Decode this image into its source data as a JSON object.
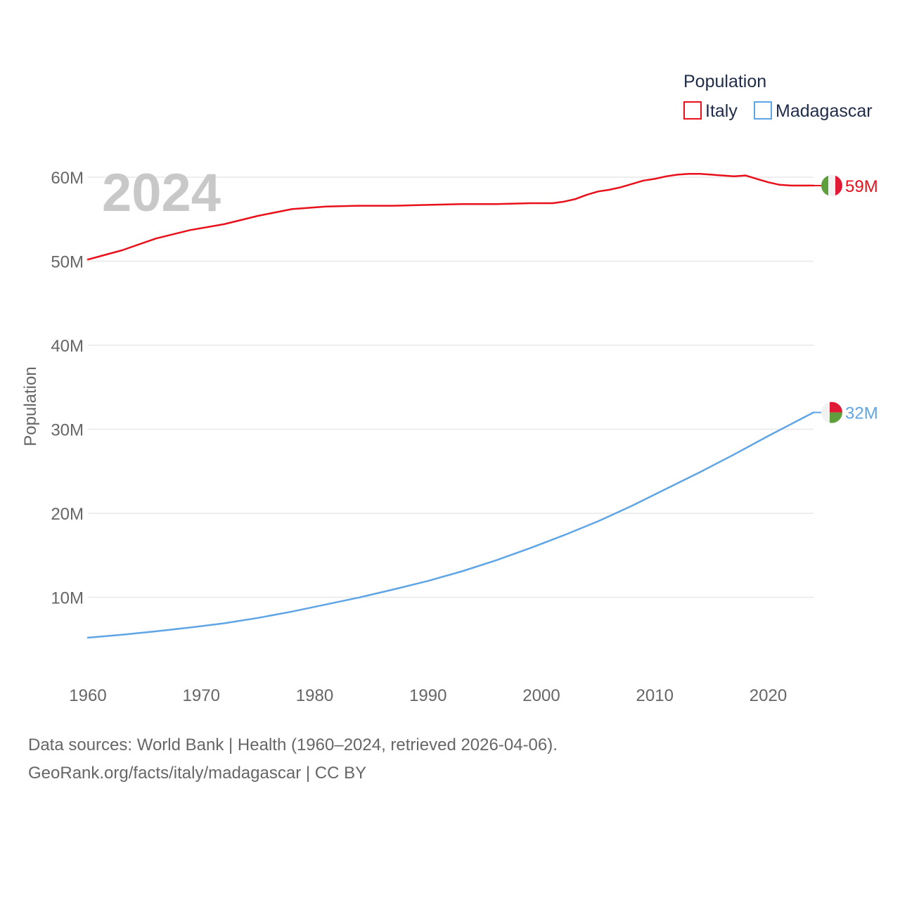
{
  "chart_data": {
    "type": "line",
    "title": "",
    "year_label": "2024",
    "xlabel": "",
    "ylabel": "Population",
    "xlim": [
      1960,
      2024
    ],
    "ylim": [
      0,
      65000000
    ],
    "x_ticks": [
      1960,
      1970,
      1980,
      1990,
      2000,
      2010,
      2020
    ],
    "y_ticks": [
      {
        "value": 10000000,
        "label": "10M"
      },
      {
        "value": 20000000,
        "label": "20M"
      },
      {
        "value": 30000000,
        "label": "30M"
      },
      {
        "value": 40000000,
        "label": "40M"
      },
      {
        "value": 50000000,
        "label": "50M"
      },
      {
        "value": 60000000,
        "label": "60M"
      }
    ],
    "legend": {
      "title": "Population",
      "placement": "top-right"
    },
    "series": [
      {
        "name": "Italy",
        "color": "#e8101a",
        "end_label": "59M",
        "flag_colors": [
          "#5f9e3d",
          "#f2f2f2",
          "#e01a36"
        ],
        "points": [
          [
            1960,
            50200000
          ],
          [
            1963,
            51300000
          ],
          [
            1966,
            52700000
          ],
          [
            1969,
            53700000
          ],
          [
            1972,
            54400000
          ],
          [
            1975,
            55400000
          ],
          [
            1978,
            56200000
          ],
          [
            1981,
            56500000
          ],
          [
            1984,
            56600000
          ],
          [
            1987,
            56600000
          ],
          [
            1990,
            56700000
          ],
          [
            1993,
            56800000
          ],
          [
            1996,
            56800000
          ],
          [
            1999,
            56900000
          ],
          [
            2001,
            56900000
          ],
          [
            2002,
            57100000
          ],
          [
            2003,
            57400000
          ],
          [
            2004,
            57900000
          ],
          [
            2005,
            58300000
          ],
          [
            2006,
            58500000
          ],
          [
            2007,
            58800000
          ],
          [
            2008,
            59200000
          ],
          [
            2009,
            59600000
          ],
          [
            2010,
            59800000
          ],
          [
            2011,
            60100000
          ],
          [
            2012,
            60300000
          ],
          [
            2013,
            60400000
          ],
          [
            2014,
            60400000
          ],
          [
            2015,
            60300000
          ],
          [
            2016,
            60200000
          ],
          [
            2017,
            60100000
          ],
          [
            2018,
            60200000
          ],
          [
            2019,
            59800000
          ],
          [
            2020,
            59400000
          ],
          [
            2021,
            59100000
          ],
          [
            2022,
            59000000
          ],
          [
            2023,
            59000000
          ],
          [
            2024,
            59000000
          ]
        ]
      },
      {
        "name": "Madagascar",
        "color": "#5fa5e6",
        "end_label": "32M",
        "flag_colors": [
          "#f2f2f2",
          "#e01a36",
          "#5f9e3d"
        ],
        "points": [
          [
            1960,
            5200000
          ],
          [
            1963,
            5550000
          ],
          [
            1966,
            5950000
          ],
          [
            1969,
            6400000
          ],
          [
            1972,
            6900000
          ],
          [
            1975,
            7550000
          ],
          [
            1978,
            8300000
          ],
          [
            1981,
            9150000
          ],
          [
            1984,
            10000000
          ],
          [
            1987,
            10950000
          ],
          [
            1990,
            11950000
          ],
          [
            1993,
            13100000
          ],
          [
            1996,
            14400000
          ],
          [
            1999,
            15850000
          ],
          [
            2002,
            17400000
          ],
          [
            2005,
            19050000
          ],
          [
            2008,
            20900000
          ],
          [
            2011,
            22900000
          ],
          [
            2014,
            24900000
          ],
          [
            2017,
            27000000
          ],
          [
            2020,
            29200000
          ],
          [
            2022,
            30600000
          ],
          [
            2024,
            32000000
          ]
        ]
      }
    ]
  },
  "footer": {
    "line1": "Data sources: World Bank | Health (1960–2024, retrieved 2026-04-06).",
    "line2": "GeoRank.org/facts/italy/madagascar | CC BY"
  }
}
